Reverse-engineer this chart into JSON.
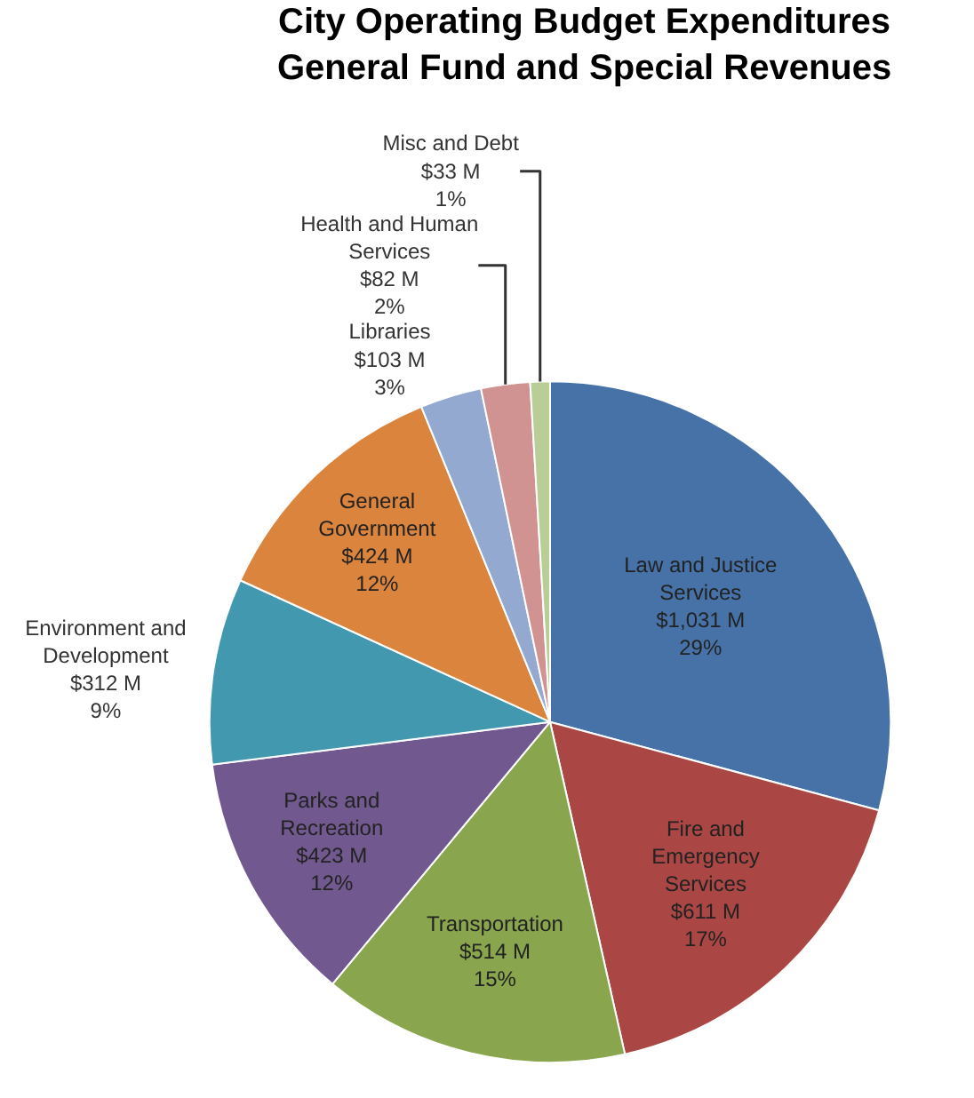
{
  "chart_data": {
    "type": "pie",
    "title": "City Operating Budget Expenditures\nGeneral Fund and Special Revenues",
    "categories": [
      "Law and Justice Services",
      "Fire and Emergency Services",
      "Transportation",
      "Parks and Recreation",
      "Environment and Development",
      "General Government",
      "Libraries",
      "Health and Human Services",
      "Misc and Debt"
    ],
    "values": [
      1031,
      611,
      514,
      423,
      312,
      424,
      103,
      82,
      33
    ],
    "value_labels": [
      "$1,031 M\n29%",
      "$611 M\n17%",
      "$514 M\n15%",
      "$423 M\n12%",
      "$312 M\n9%",
      "$424 M\n12%",
      "$103 M\n3%",
      "$82 M\n2%",
      "$33 M\n1%"
    ],
    "colors": [
      "#4672a8",
      "#aa4643",
      "#89a54e",
      "#71588f",
      "#4198af",
      "#db843d",
      "#93a9cf",
      "#d19392",
      "#b9cd96"
    ],
    "legend": false
  }
}
